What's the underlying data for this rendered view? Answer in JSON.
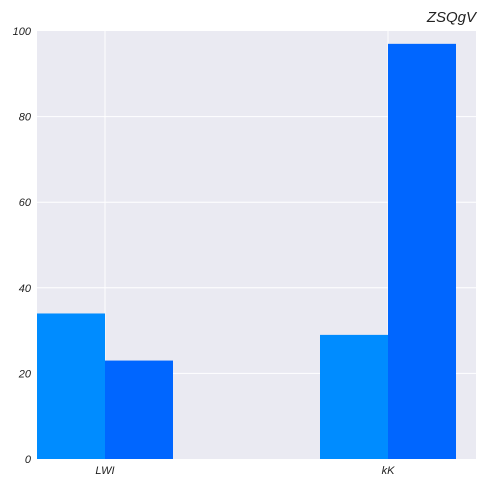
{
  "chart_data": {
    "type": "bar",
    "title": "ZSQgV",
    "xlabel": "",
    "ylabel": "",
    "categories": [
      "LWI",
      "kK"
    ],
    "series": [
      {
        "color": "#008cff",
        "values": [
          34,
          29
        ]
      },
      {
        "color": "#0066ff",
        "values": [
          23,
          97
        ]
      }
    ],
    "ylim": [
      0,
      100
    ],
    "yticks": [
      0,
      20,
      40,
      60,
      80,
      100
    ],
    "grid": true,
    "background": "#eaeaf2"
  }
}
